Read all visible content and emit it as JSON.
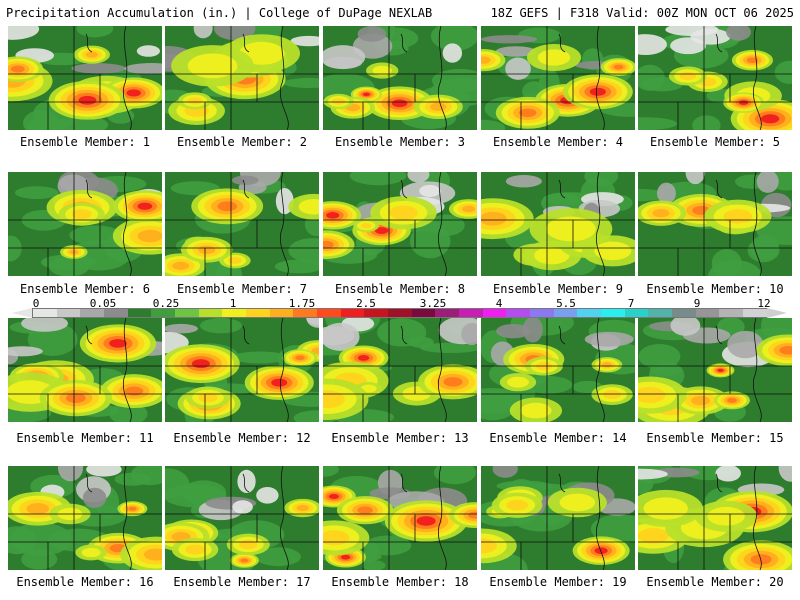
{
  "header": {
    "left": "Precipitation Accumulation (in.) | College of DuPage NEXLAB",
    "right": "18Z GEFS | F318 Valid: 00Z MON OCT 06 2025"
  },
  "colorbar": {
    "ticks": [
      "0",
      "0.05",
      "0.25",
      "1",
      "1.75",
      "2.5",
      "3.25",
      "4",
      "5.5",
      "7",
      "9",
      "12"
    ],
    "colors": [
      "#e6e6e6",
      "#c8c8c8",
      "#a8a8a8",
      "#8c8c8c",
      "#2e7d2e",
      "#3f9f3f",
      "#6cc644",
      "#b8e02a",
      "#f0f01e",
      "#ffd21e",
      "#ffae1e",
      "#ff7a1e",
      "#ff4a1e",
      "#f01e1e",
      "#c8141e",
      "#a01028",
      "#7a0a3c",
      "#9c1e78",
      "#c81eb4",
      "#f01ef0",
      "#b44cf0",
      "#8c78f0",
      "#78a0f0",
      "#50d2f0",
      "#28f0f0",
      "#28d2c8",
      "#50b4aa",
      "#788c8c",
      "#969696",
      "#b4b4b4",
      "#d2d2d2"
    ]
  },
  "panels": [
    {
      "label": "Ensemble Member: 1"
    },
    {
      "label": "Ensemble Member: 2"
    },
    {
      "label": "Ensemble Member: 3"
    },
    {
      "label": "Ensemble Member: 4"
    },
    {
      "label": "Ensemble Member: 5"
    },
    {
      "label": "Ensemble Member: 6"
    },
    {
      "label": "Ensemble Member: 7"
    },
    {
      "label": "Ensemble Member: 8"
    },
    {
      "label": "Ensemble Member: 9"
    },
    {
      "label": "Ensemble Member: 10"
    },
    {
      "label": "Ensemble Member: 11"
    },
    {
      "label": "Ensemble Member: 12"
    },
    {
      "label": "Ensemble Member: 13"
    },
    {
      "label": "Ensemble Member: 14"
    },
    {
      "label": "Ensemble Member: 15"
    },
    {
      "label": "Ensemble Member: 16"
    },
    {
      "label": "Ensemble Member: 17"
    },
    {
      "label": "Ensemble Member: 18"
    },
    {
      "label": "Ensemble Member: 19"
    },
    {
      "label": "Ensemble Member: 20"
    }
  ]
}
